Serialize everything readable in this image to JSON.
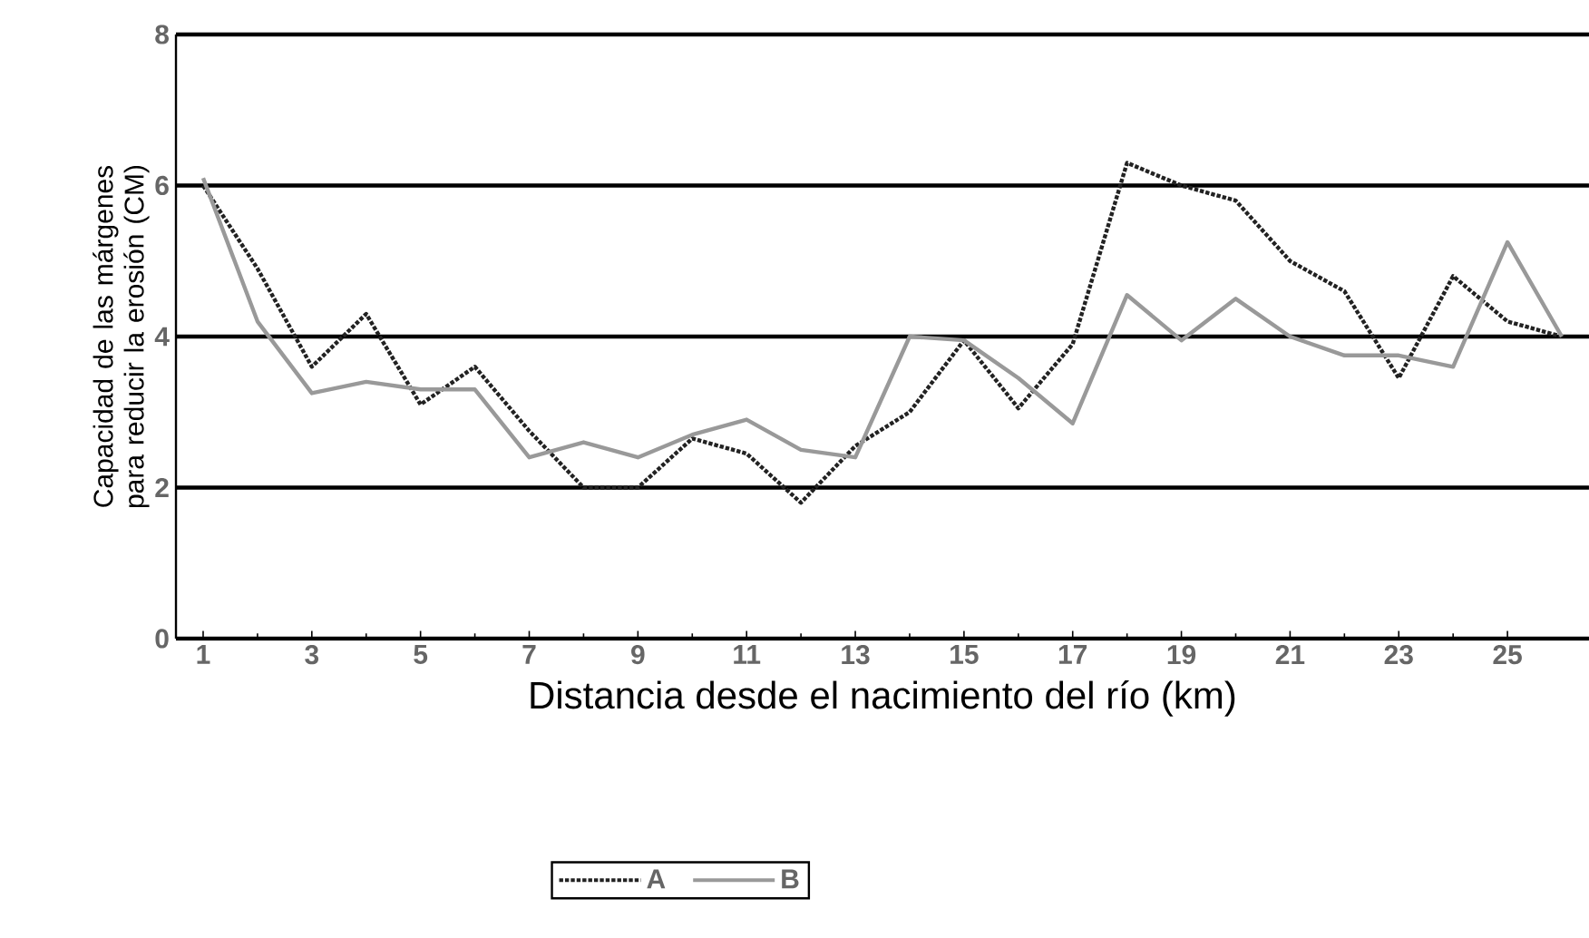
{
  "chart_data": {
    "type": "line",
    "xlabel": "Distancia desde el nacimiento del río (km)",
    "ylabel": "Capacidad de las márgenes para reducir la erosión (CM)",
    "x": [
      1,
      2,
      3,
      4,
      5,
      6,
      7,
      8,
      9,
      10,
      11,
      12,
      13,
      14,
      15,
      16,
      17,
      18,
      19,
      20,
      21,
      22,
      23,
      24,
      25,
      26
    ],
    "series": [
      {
        "name": "A",
        "color": "#222222",
        "line_style": "dotted",
        "values": [
          6.0,
          4.9,
          3.6,
          4.3,
          3.1,
          3.6,
          2.75,
          2.0,
          2.0,
          2.65,
          2.45,
          1.8,
          2.55,
          3.0,
          3.95,
          3.05,
          3.9,
          6.3,
          6.0,
          5.8,
          5.0,
          4.6,
          3.45,
          4.8,
          4.2,
          4.0
        ]
      },
      {
        "name": "B",
        "color": "#999999",
        "line_style": "solid",
        "values": [
          6.1,
          4.2,
          3.25,
          3.4,
          3.3,
          3.3,
          2.4,
          2.6,
          2.4,
          2.7,
          2.9,
          2.5,
          2.4,
          4.0,
          3.95,
          3.45,
          2.85,
          4.55,
          3.95,
          4.5,
          4.0,
          3.75,
          3.75,
          3.6,
          5.25,
          4.0
        ]
      }
    ],
    "xlim": [
      0.5,
      26.5
    ],
    "xticks": [
      1,
      3,
      5,
      7,
      9,
      11,
      13,
      15,
      17,
      19,
      21,
      23,
      25
    ],
    "ylim": [
      0,
      8
    ],
    "yticks": [
      0,
      2,
      4,
      6,
      8
    ],
    "grid": "y",
    "legend": "bottom",
    "marker": "none"
  }
}
